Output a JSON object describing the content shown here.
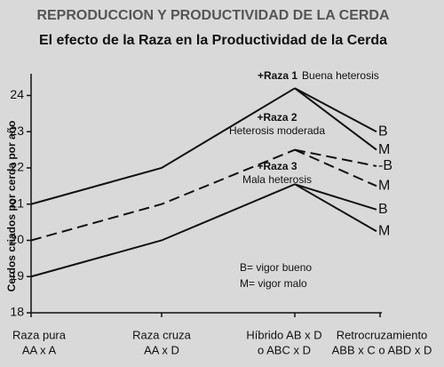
{
  "chart_data": {
    "type": "line",
    "title": "REPRODUCCION Y PRODUCTIVIDAD DE LA CERDA",
    "subtitle": "El efecto de la Raza en la Productividad de la Cerda",
    "y_label": "Cerdos criados por cerda por año",
    "categories": [
      [
        "Raza pura",
        "AA x A"
      ],
      [
        "Raza cruza",
        "AA x D"
      ],
      [
        "Híbrido AB x D",
        "o ABC x D"
      ],
      [
        "Retrocruzamiento",
        "ABB x C o ABD x D"
      ]
    ],
    "ylim": [
      18,
      24.6
    ],
    "yticks": [
      18,
      19,
      20,
      21,
      22,
      23,
      24
    ],
    "groups": [
      {
        "annotation": "+Raza 1",
        "note": "Buena heterosis",
        "dashed": false,
        "values": [
          21,
          22,
          24.2
        ],
        "branches": [
          {
            "label": "B",
            "value": 23
          },
          {
            "label": "M",
            "value": 22.5
          }
        ]
      },
      {
        "annotation": "+Raza 2",
        "note": "Heterosis moderada",
        "dashed": true,
        "values": [
          20,
          21,
          22.5
        ],
        "branches": [
          {
            "label": "-B",
            "value": 22.05
          },
          {
            "label": "M",
            "value": 21.5
          }
        ]
      },
      {
        "annotation": "+Raza 3",
        "note": "Mala heterosis",
        "dashed": false,
        "values": [
          19,
          20,
          21.55
        ],
        "branches": [
          {
            "label": "B",
            "value": 20.85
          },
          {
            "label": "M",
            "value": 20.25
          }
        ]
      }
    ],
    "legend_text": [
      "B= vigor bueno",
      "M= vigor malo"
    ]
  }
}
